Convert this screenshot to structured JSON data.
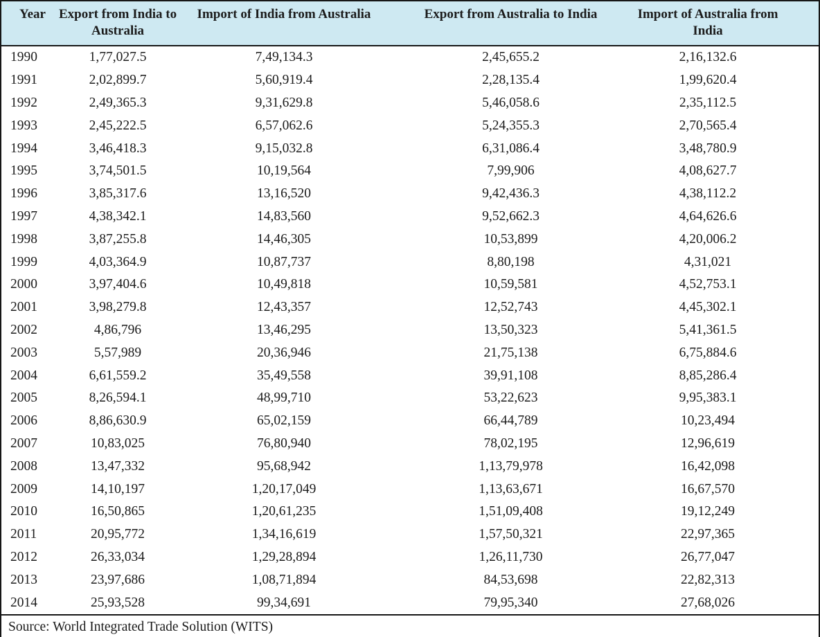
{
  "table": {
    "headers": [
      {
        "label": "Year",
        "lines": [
          "Year"
        ]
      },
      {
        "label": "Export from India to Australia",
        "lines": [
          "Export from India to",
          "Australia"
        ]
      },
      {
        "label": "Import of India from Australia",
        "lines": [
          "Import of India from Australia"
        ]
      },
      {
        "label": "Export from Australia to India",
        "lines": [
          "Export from Australia to India"
        ]
      },
      {
        "label": "Import of Australia from India",
        "lines": [
          "Import of Australia from",
          "India"
        ]
      }
    ],
    "rows": [
      [
        "1990",
        "1,77,027.5",
        "7,49,134.3",
        "2,45,655.2",
        "2,16,132.6"
      ],
      [
        "1991",
        "2,02,899.7",
        "5,60,919.4",
        "2,28,135.4",
        "1,99,620.4"
      ],
      [
        "1992",
        "2,49,365.3",
        "9,31,629.8",
        "5,46,058.6",
        "2,35,112.5"
      ],
      [
        "1993",
        "2,45,222.5",
        "6,57,062.6",
        "5,24,355.3",
        "2,70,565.4"
      ],
      [
        "1994",
        "3,46,418.3",
        "9,15,032.8",
        "6,31,086.4",
        "3,48,780.9"
      ],
      [
        "1995",
        "3,74,501.5",
        "10,19,564",
        "7,99,906",
        "4,08,627.7"
      ],
      [
        "1996",
        "3,85,317.6",
        "13,16,520",
        "9,42,436.3",
        "4,38,112.2"
      ],
      [
        "1997",
        "4,38,342.1",
        "14,83,560",
        "9,52,662.3",
        "4,64,626.6"
      ],
      [
        "1998",
        "3,87,255.8",
        "14,46,305",
        "10,53,899",
        "4,20,006.2"
      ],
      [
        "1999",
        "4,03,364.9",
        "10,87,737",
        "8,80,198",
        "4,31,021"
      ],
      [
        "2000",
        "3,97,404.6",
        "10,49,818",
        "10,59,581",
        "4,52,753.1"
      ],
      [
        "2001",
        "3,98,279.8",
        "12,43,357",
        "12,52,743",
        "4,45,302.1"
      ],
      [
        "2002",
        "4,86,796",
        "13,46,295",
        "13,50,323",
        "5,41,361.5"
      ],
      [
        "2003",
        "5,57,989",
        "20,36,946",
        "21,75,138",
        "6,75,884.6"
      ],
      [
        "2004",
        "6,61,559.2",
        "35,49,558",
        "39,91,108",
        "8,85,286.4"
      ],
      [
        "2005",
        "8,26,594.1",
        "48,99,710",
        "53,22,623",
        "9,95,383.1"
      ],
      [
        "2006",
        "8,86,630.9",
        "65,02,159",
        "66,44,789",
        "10,23,494"
      ],
      [
        "2007",
        "10,83,025",
        "76,80,940",
        "78,02,195",
        "12,96,619"
      ],
      [
        "2008",
        "13,47,332",
        "95,68,942",
        "1,13,79,978",
        "16,42,098"
      ],
      [
        "2009",
        "14,10,197",
        "1,20,17,049",
        "1,13,63,671",
        "16,67,570"
      ],
      [
        "2010",
        "16,50,865",
        "1,20,61,235",
        "1,51,09,408",
        "19,12,249"
      ],
      [
        "2011",
        "20,95,772",
        "1,34,16,619",
        "1,57,50,321",
        "22,97,365"
      ],
      [
        "2012",
        "26,33,034",
        "1,29,28,894",
        "1,26,11,730",
        "26,77,047"
      ],
      [
        "2013",
        "23,97,686",
        "1,08,71,894",
        "84,53,698",
        "22,82,313"
      ],
      [
        "2014",
        "25,93,528",
        "99,34,691",
        "79,95,340",
        "27,68,026"
      ]
    ]
  },
  "footer": {
    "source": "Source: World Integrated Trade Solution (WITS)"
  },
  "colors": {
    "header_bg": "#cee9f2",
    "border": "#161616",
    "text": "#1b1b1b"
  },
  "chart_data": {
    "type": "table",
    "title": "India-Australia bilateral trade, 1990-2014",
    "columns": [
      "Year",
      "Export from India to Australia",
      "Import of India from Australia",
      "Export from Australia to India",
      "Import of Australia from India"
    ],
    "categories": [
      "1990",
      "1991",
      "1992",
      "1993",
      "1994",
      "1995",
      "1996",
      "1997",
      "1998",
      "1999",
      "2000",
      "2001",
      "2002",
      "2003",
      "2004",
      "2005",
      "2006",
      "2007",
      "2008",
      "2009",
      "2010",
      "2011",
      "2012",
      "2013",
      "2014"
    ],
    "series": [
      {
        "name": "Export from India to Australia",
        "values": [
          177027.5,
          202899.7,
          249365.3,
          245222.5,
          346418.3,
          374501.5,
          385317.6,
          438342.1,
          387255.8,
          403364.9,
          397404.6,
          398279.8,
          486796,
          557989,
          661559.2,
          826594.1,
          886630.9,
          1083025,
          1347332,
          1410197,
          1650865,
          2095772,
          2633034,
          2397686,
          2593528
        ]
      },
      {
        "name": "Import of India from Australia",
        "values": [
          749134.3,
          560919.4,
          931629.8,
          657062.6,
          915032.8,
          1019564,
          1316520,
          1483560,
          1446305,
          1087737,
          1049818,
          1243357,
          1346295,
          2036946,
          3549558,
          4899710,
          6502159,
          7680940,
          9568942,
          12017049,
          12061235,
          13416619,
          12928894,
          10871894,
          9934691
        ]
      },
      {
        "name": "Export from Australia to India",
        "values": [
          245655.2,
          228135.4,
          546058.6,
          524355.3,
          631086.4,
          799906,
          942436.3,
          952662.3,
          1053899,
          880198,
          1059581,
          1252743,
          1350323,
          2175138,
          3991108,
          5322623,
          6644789,
          7802195,
          11379978,
          11363671,
          15109408,
          15750321,
          12611730,
          8453698,
          7995340
        ]
      },
      {
        "name": "Import of Australia from India",
        "values": [
          216132.6,
          199620.4,
          235112.5,
          270565.4,
          348780.9,
          408627.7,
          438112.2,
          464626.6,
          420006.2,
          431021,
          452753.1,
          445302.1,
          541361.5,
          675884.6,
          885286.4,
          995383.1,
          1023494,
          1296619,
          1642098,
          1667570,
          1912249,
          2297365,
          2677047,
          2282313,
          2768026
        ]
      }
    ],
    "source": "World Integrated Trade Solution (WITS)"
  }
}
